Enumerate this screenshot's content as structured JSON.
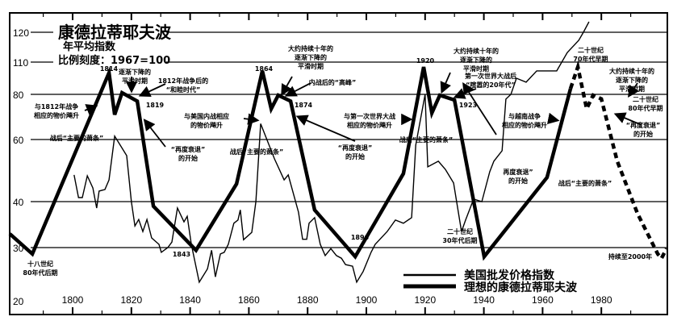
{
  "chart_data": {
    "type": "line",
    "title": "康德拉蒂耶夫波",
    "subtitle": [
      "年平均指数",
      "比例刻度：1967=100"
    ],
    "xlabel": "",
    "ylabel": "",
    "xlim": [
      1778,
      2003
    ],
    "ylim": [
      20,
      125
    ],
    "yscale": "nonlinear (index scale)",
    "grid": "horizontal lines at y ticks",
    "x_ticks": [
      1800,
      1820,
      1840,
      1860,
      1880,
      1900,
      1920,
      1940,
      1960,
      1980
    ],
    "y_ticks": [
      20,
      30,
      40,
      60,
      80,
      110,
      120
    ],
    "legend_placement": "bottom-right",
    "series": [
      {
        "name": "美国批发价格指数",
        "style": "thin solid",
        "points": [
          [
            1800.5,
            48.6
          ],
          [
            1802,
            41.3
          ],
          [
            1803.3,
            41.3
          ],
          [
            1805,
            48.3
          ],
          [
            1806.9,
            44.4
          ],
          [
            1808.2,
            38.6
          ],
          [
            1809,
            43.4
          ],
          [
            1811,
            43.9
          ],
          [
            1812.4,
            47
          ],
          [
            1814.3,
            61.5
          ],
          [
            1818.4,
            54.8
          ],
          [
            1820,
            40
          ],
          [
            1821.2,
            34.7
          ],
          [
            1822.5,
            36.1
          ],
          [
            1823.9,
            33.5
          ],
          [
            1825.3,
            36.1
          ],
          [
            1826.9,
            32.1
          ],
          [
            1829.4,
            30.7
          ],
          [
            1830.2,
            29.1
          ],
          [
            1832.4,
            30
          ],
          [
            1833.8,
            31.2
          ],
          [
            1835.7,
            38.6
          ],
          [
            1837.9,
            35.6
          ],
          [
            1839,
            36.8
          ],
          [
            1840.4,
            30.7
          ],
          [
            1843.1,
            23.5
          ],
          [
            1845.9,
            26
          ],
          [
            1847.3,
            29.5
          ],
          [
            1848.6,
            24.5
          ],
          [
            1850.3,
            28.8
          ],
          [
            1851.6,
            29.1
          ],
          [
            1853,
            30.7
          ],
          [
            1854.9,
            35.3
          ],
          [
            1856.3,
            36
          ],
          [
            1857.1,
            38.2
          ],
          [
            1858.2,
            31.7
          ],
          [
            1861,
            33.3
          ],
          [
            1862.4,
            40
          ],
          [
            1864,
            67
          ],
          [
            1868.7,
            53.8
          ],
          [
            1872,
            47
          ],
          [
            1873.4,
            48.6
          ],
          [
            1876.9,
            37.7
          ],
          [
            1878.3,
            31.8
          ],
          [
            1879.7,
            31.8
          ],
          [
            1880.5,
            35.3
          ],
          [
            1882.4,
            36.5
          ],
          [
            1884.3,
            30.7
          ],
          [
            1886,
            28.5
          ],
          [
            1887.9,
            29.8
          ],
          [
            1889.8,
            28.5
          ],
          [
            1891.5,
            28
          ],
          [
            1892.9,
            26.8
          ],
          [
            1895.3,
            26.5
          ],
          [
            1896.7,
            23.5
          ],
          [
            1898.9,
            25.5
          ],
          [
            1901.6,
            29.1
          ],
          [
            1903,
            30.7
          ],
          [
            1907.1,
            33.5
          ],
          [
            1909.9,
            36
          ],
          [
            1912.6,
            35.3
          ],
          [
            1915.4,
            36.5
          ],
          [
            1916.8,
            58.2
          ],
          [
            1920,
            80
          ],
          [
            1920.9,
            51.2
          ],
          [
            1924.5,
            53
          ],
          [
            1926.9,
            50.4
          ],
          [
            1929.7,
            46
          ],
          [
            1932.4,
            33.5
          ],
          [
            1933.8,
            36
          ],
          [
            1936.5,
            40.8
          ],
          [
            1939.3,
            40
          ],
          [
            1942,
            49.6
          ],
          [
            1943.4,
            53
          ],
          [
            1946.2,
            56.4
          ],
          [
            1947.5,
            77.9
          ],
          [
            1949.2,
            80
          ],
          [
            1951.1,
            95
          ],
          [
            1954.4,
            91.3
          ],
          [
            1958,
            101.8
          ],
          [
            1964.8,
            101.8
          ],
          [
            1968.4,
            113.2
          ],
          [
            1972.3,
            117.3
          ],
          [
            1973.9,
            120
          ],
          [
            1975.8,
            123.5
          ]
        ]
      },
      {
        "name": "理想的康德拉蒂耶夫波",
        "style": "thick solid",
        "points": [
          [
            1778.6,
            33
          ],
          [
            1786.3,
            28.8
          ],
          [
            1812.4,
            100
          ],
          [
            1814.3,
            71
          ],
          [
            1816.8,
            81.5
          ],
          [
            1822,
            77
          ],
          [
            1827.5,
            39
          ],
          [
            1842,
            29.5
          ],
          [
            1855.8,
            45.7
          ],
          [
            1864.6,
            101.8
          ],
          [
            1867.6,
            73.6
          ],
          [
            1870,
            79.6
          ],
          [
            1874.2,
            77
          ],
          [
            1882.4,
            38.2
          ],
          [
            1896.2,
            28.3
          ],
          [
            1912.6,
            49
          ],
          [
            1919.5,
            105.5
          ],
          [
            1922.3,
            71.8
          ],
          [
            1925,
            79.6
          ],
          [
            1930,
            77.5
          ],
          [
            1940.1,
            28.3
          ],
          [
            1961.5,
            47.8
          ],
          [
            1969.5,
            85.3
          ]
        ]
      },
      {
        "name": "理想的康德拉蒂耶夫波",
        "style": "thick dashed (projection)",
        "points": [
          [
            1969.5,
            85.3
          ],
          [
            1972,
            105.5
          ],
          [
            1975,
            73.6
          ],
          [
            1977.2,
            79.6
          ],
          [
            1980,
            78
          ],
          [
            1985.4,
            53
          ],
          [
            1992.3,
            37.4
          ],
          [
            1999.2,
            28.8
          ],
          [
            2000.5,
            28
          ],
          [
            2002.2,
            29.8
          ]
        ]
      }
    ],
    "annotations": [
      [
        "1814"
      ],
      [
        "逐渐下降的",
        "平滑时期"
      ],
      [
        "1812年战争后的",
        "“和睦时代”"
      ],
      [
        "1819"
      ],
      [
        "与1812年战争",
        "相应的物价飚升"
      ],
      [
        "战后“主要的萧条”"
      ],
      [
        "“再度衰退”",
        "的开始"
      ],
      [
        "与美国内战相应",
        "的物价飚升"
      ],
      [
        "战后“主要的萧条”"
      ],
      [
        "1864"
      ],
      [
        "大约持续十年的",
        "逐渐下降的",
        "平滑时期"
      ],
      [
        "内战后的“高峰”"
      ],
      [
        "1874"
      ],
      [
        "与第一次世界大战",
        "相应的物价飚升"
      ],
      [
        "“再度衰退”",
        "的开始"
      ],
      [
        "战后“主要的萧条”"
      ],
      [
        "1920"
      ],
      [
        "大约持续十年的",
        "逐渐下降的",
        "平滑时期"
      ],
      [
        "第一次世界大战后",
        "“喧嚣的20年代”"
      ],
      [
        "1923"
      ],
      [
        "与越南战争",
        "相应的物价飚升"
      ],
      [
        "再度衰退”",
        "的开始"
      ],
      [
        "战后“主要的萧条”"
      ],
      [
        "二十世纪",
        "70年代早期"
      ],
      [
        "大约持续十年的",
        "逐渐下降的",
        "平滑时期"
      ],
      [
        "二十世纪",
        "80年代早期"
      ],
      [
        "“再度衰退”",
        "的开始"
      ],
      [
        "1843"
      ],
      [
        "1896"
      ],
      [
        "二十世纪",
        "30年代后期"
      ],
      [
        "十八世纪",
        "80年代后期"
      ],
      [
        "持续至2000年"
      ]
    ],
    "legend": [
      "美国批发价格指数",
      "理想的康德拉蒂耶夫波"
    ],
    "colors": {
      "ink": "#000000",
      "background": "#ffffff"
    }
  }
}
